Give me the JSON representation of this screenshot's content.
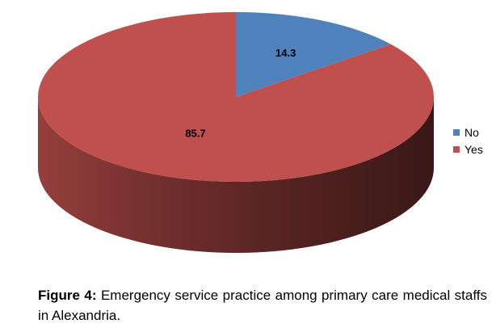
{
  "chart_data": {
    "type": "pie",
    "style": "3d",
    "categories": [
      "No",
      "Yes"
    ],
    "values": [
      14.3,
      85.7
    ],
    "data_labels": [
      "14.3",
      "85.7"
    ],
    "colors": [
      "#4f81bd",
      "#c0504d"
    ],
    "legend_position": "right"
  },
  "caption": {
    "label": "Figure 4:",
    "text": " Emergency service practice among primary care medical staffs in Alexandria."
  }
}
